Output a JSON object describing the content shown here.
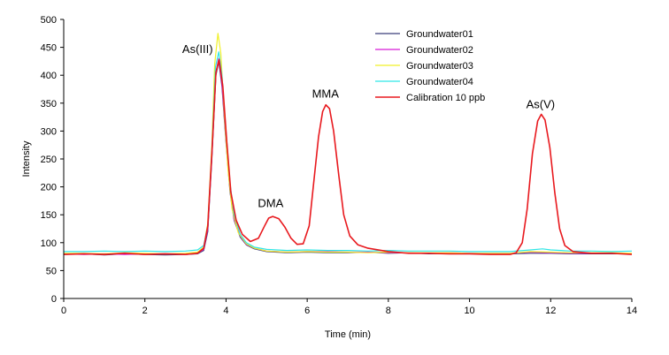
{
  "chart_data": {
    "type": "line",
    "title": "",
    "xlabel": "Time (min)",
    "ylabel": "Intensity",
    "xlim": [
      0,
      14
    ],
    "ylim": [
      0,
      500
    ],
    "xticks": [
      0,
      2,
      4,
      6,
      8,
      10,
      12,
      14
    ],
    "yticks": [
      0,
      50,
      100,
      150,
      200,
      250,
      300,
      350,
      400,
      450,
      500
    ],
    "grid": false,
    "legend_position": "top-right",
    "peak_labels": [
      {
        "text": "As(III)",
        "x": 3.8,
        "y": 430
      },
      {
        "text": "DMA",
        "x": 5.1,
        "y": 148
      },
      {
        "text": "MMA",
        "x": 6.45,
        "y": 347
      },
      {
        "text": "As(V)",
        "x": 11.75,
        "y": 330
      }
    ],
    "series": [
      {
        "name": "Groundwater01",
        "color": "#3b3f7a",
        "points": [
          [
            0,
            79
          ],
          [
            0.5,
            80
          ],
          [
            1,
            78
          ],
          [
            1.5,
            80
          ],
          [
            2,
            79
          ],
          [
            2.5,
            78
          ],
          [
            3,
            79
          ],
          [
            3.3,
            80
          ],
          [
            3.45,
            86
          ],
          [
            3.55,
            120
          ],
          [
            3.65,
            250
          ],
          [
            3.75,
            400
          ],
          [
            3.82,
            425
          ],
          [
            3.9,
            380
          ],
          [
            4.0,
            280
          ],
          [
            4.1,
            190
          ],
          [
            4.2,
            140
          ],
          [
            4.35,
            110
          ],
          [
            4.5,
            96
          ],
          [
            4.7,
            89
          ],
          [
            5,
            84
          ],
          [
            5.5,
            82
          ],
          [
            6,
            83
          ],
          [
            6.5,
            82
          ],
          [
            7,
            82
          ],
          [
            7.5,
            83
          ],
          [
            8,
            81
          ],
          [
            8.5,
            82
          ],
          [
            9,
            80
          ],
          [
            9.5,
            81
          ],
          [
            10,
            80
          ],
          [
            10.5,
            80
          ],
          [
            11,
            80
          ],
          [
            11.5,
            81
          ],
          [
            12,
            81
          ],
          [
            12.5,
            80
          ],
          [
            13,
            80
          ],
          [
            13.5,
            80
          ],
          [
            14,
            80
          ]
        ]
      },
      {
        "name": "Groundwater02",
        "color": "#d61bd6",
        "points": [
          [
            0,
            80
          ],
          [
            0.5,
            79
          ],
          [
            1,
            80
          ],
          [
            1.5,
            79
          ],
          [
            2,
            80
          ],
          [
            2.5,
            80
          ],
          [
            3,
            79
          ],
          [
            3.3,
            81
          ],
          [
            3.45,
            88
          ],
          [
            3.55,
            125
          ],
          [
            3.65,
            255
          ],
          [
            3.75,
            405
          ],
          [
            3.82,
            430
          ],
          [
            3.9,
            385
          ],
          [
            4.0,
            285
          ],
          [
            4.1,
            195
          ],
          [
            4.2,
            142
          ],
          [
            4.35,
            112
          ],
          [
            4.5,
            97
          ],
          [
            4.7,
            90
          ],
          [
            5,
            85
          ],
          [
            5.5,
            83
          ],
          [
            6,
            84
          ],
          [
            6.5,
            84
          ],
          [
            7,
            83
          ],
          [
            7.5,
            83
          ],
          [
            8,
            82
          ],
          [
            8.5,
            82
          ],
          [
            9,
            81
          ],
          [
            9.5,
            82
          ],
          [
            10,
            81
          ],
          [
            10.5,
            81
          ],
          [
            11,
            81
          ],
          [
            11.5,
            83
          ],
          [
            12,
            82
          ],
          [
            12.5,
            81
          ],
          [
            13,
            81
          ],
          [
            13.5,
            81
          ],
          [
            14,
            80
          ]
        ]
      },
      {
        "name": "Groundwater03",
        "color": "#f0f028",
        "points": [
          [
            0,
            81
          ],
          [
            0.5,
            81
          ],
          [
            1,
            80
          ],
          [
            1.5,
            82
          ],
          [
            2,
            81
          ],
          [
            2.5,
            80
          ],
          [
            3,
            81
          ],
          [
            3.3,
            83
          ],
          [
            3.45,
            92
          ],
          [
            3.55,
            135
          ],
          [
            3.65,
            275
          ],
          [
            3.72,
            420
          ],
          [
            3.8,
            475
          ],
          [
            3.87,
            440
          ],
          [
            3.95,
            340
          ],
          [
            4.05,
            230
          ],
          [
            4.15,
            160
          ],
          [
            4.3,
            118
          ],
          [
            4.5,
            98
          ],
          [
            4.7,
            90
          ],
          [
            5,
            85
          ],
          [
            5.5,
            83
          ],
          [
            6,
            84
          ],
          [
            6.5,
            83
          ],
          [
            7,
            83
          ],
          [
            7.5,
            82
          ],
          [
            8,
            83
          ],
          [
            8.5,
            82
          ],
          [
            9,
            82
          ],
          [
            9.5,
            82
          ],
          [
            10,
            81
          ],
          [
            10.5,
            81
          ],
          [
            11,
            81
          ],
          [
            11.5,
            84
          ],
          [
            12,
            83
          ],
          [
            12.5,
            82
          ],
          [
            13,
            82
          ],
          [
            13.5,
            82
          ],
          [
            14,
            81
          ]
        ]
      },
      {
        "name": "Groundwater04",
        "color": "#2ee6e6",
        "points": [
          [
            0,
            84
          ],
          [
            0.5,
            84
          ],
          [
            1,
            85
          ],
          [
            1.5,
            84
          ],
          [
            2,
            85
          ],
          [
            2.5,
            84
          ],
          [
            3,
            85
          ],
          [
            3.3,
            87
          ],
          [
            3.45,
            95
          ],
          [
            3.55,
            130
          ],
          [
            3.65,
            265
          ],
          [
            3.74,
            415
          ],
          [
            3.82,
            442
          ],
          [
            3.9,
            400
          ],
          [
            4.0,
            300
          ],
          [
            4.1,
            205
          ],
          [
            4.2,
            150
          ],
          [
            4.35,
            115
          ],
          [
            4.5,
            100
          ],
          [
            4.7,
            92
          ],
          [
            5,
            88
          ],
          [
            5.5,
            86
          ],
          [
            6,
            87
          ],
          [
            6.5,
            86
          ],
          [
            7,
            86
          ],
          [
            7.5,
            85
          ],
          [
            8,
            86
          ],
          [
            8.5,
            85
          ],
          [
            9,
            85
          ],
          [
            9.5,
            85
          ],
          [
            10,
            84
          ],
          [
            10.5,
            84
          ],
          [
            11,
            84
          ],
          [
            11.5,
            87
          ],
          [
            11.8,
            89
          ],
          [
            12,
            87
          ],
          [
            12.5,
            85
          ],
          [
            13,
            85
          ],
          [
            13.5,
            84
          ],
          [
            14,
            85
          ]
        ]
      },
      {
        "name": "Calibration 10 ppb",
        "color": "#e8191e",
        "points": [
          [
            0,
            79
          ],
          [
            0.5,
            80
          ],
          [
            1,
            79
          ],
          [
            1.5,
            81
          ],
          [
            2,
            79
          ],
          [
            2.5,
            80
          ],
          [
            3,
            79
          ],
          [
            3.3,
            81
          ],
          [
            3.45,
            90
          ],
          [
            3.55,
            130
          ],
          [
            3.65,
            260
          ],
          [
            3.75,
            405
          ],
          [
            3.83,
            428
          ],
          [
            3.92,
            380
          ],
          [
            4.02,
            280
          ],
          [
            4.12,
            190
          ],
          [
            4.25,
            140
          ],
          [
            4.4,
            115
          ],
          [
            4.6,
            102
          ],
          [
            4.8,
            108
          ],
          [
            4.95,
            130
          ],
          [
            5.05,
            144
          ],
          [
            5.15,
            147
          ],
          [
            5.3,
            143
          ],
          [
            5.45,
            128
          ],
          [
            5.6,
            108
          ],
          [
            5.75,
            97
          ],
          [
            5.9,
            98
          ],
          [
            6.05,
            130
          ],
          [
            6.15,
            200
          ],
          [
            6.28,
            290
          ],
          [
            6.38,
            335
          ],
          [
            6.46,
            347
          ],
          [
            6.55,
            340
          ],
          [
            6.65,
            300
          ],
          [
            6.78,
            220
          ],
          [
            6.9,
            150
          ],
          [
            7.05,
            112
          ],
          [
            7.25,
            96
          ],
          [
            7.5,
            90
          ],
          [
            8,
            84
          ],
          [
            8.5,
            81
          ],
          [
            9,
            81
          ],
          [
            9.5,
            80
          ],
          [
            10,
            80
          ],
          [
            10.5,
            79
          ],
          [
            11,
            79
          ],
          [
            11.15,
            82
          ],
          [
            11.3,
            100
          ],
          [
            11.42,
            160
          ],
          [
            11.55,
            260
          ],
          [
            11.68,
            318
          ],
          [
            11.77,
            330
          ],
          [
            11.86,
            320
          ],
          [
            11.98,
            270
          ],
          [
            12.1,
            190
          ],
          [
            12.22,
            125
          ],
          [
            12.35,
            95
          ],
          [
            12.55,
            84
          ],
          [
            13,
            81
          ],
          [
            13.5,
            81
          ],
          [
            14,
            79
          ]
        ]
      }
    ]
  }
}
